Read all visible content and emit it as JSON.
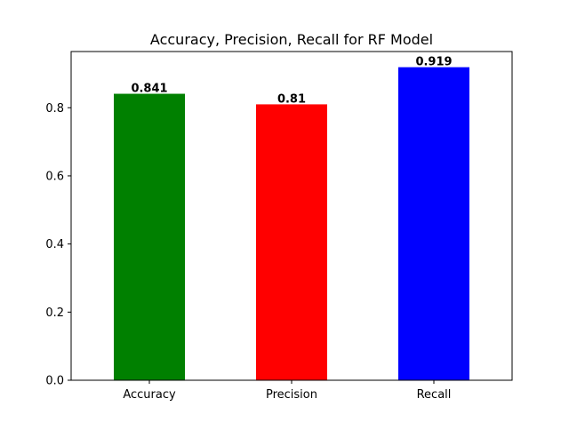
{
  "chart_data": {
    "type": "bar",
    "title": "Accuracy, Precision, Recall for RF Model",
    "xlabel": "",
    "ylabel": "",
    "categories": [
      "Accuracy",
      "Precision",
      "Recall"
    ],
    "values": [
      0.841,
      0.81,
      0.919
    ],
    "value_labels": [
      "0.841",
      "0.81",
      "0.919"
    ],
    "colors": [
      "#008000",
      "#ff0000",
      "#0000ff"
    ],
    "ylim": [
      0,
      0.965
    ],
    "yticks": [
      0.0,
      0.2,
      0.4,
      0.6,
      0.8
    ],
    "ytick_labels": [
      "0.0",
      "0.2",
      "0.4",
      "0.6",
      "0.8"
    ],
    "grid": false,
    "legend": "none"
  }
}
